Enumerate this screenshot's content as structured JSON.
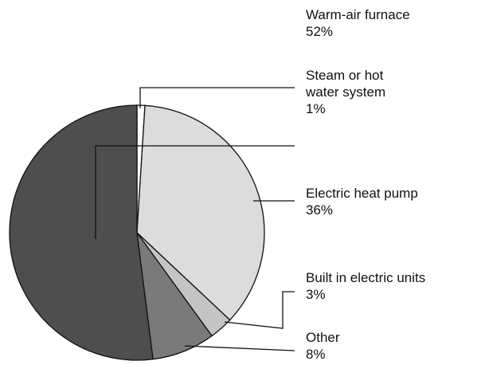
{
  "chart_data": {
    "type": "pie",
    "categories": [
      "Steam or hot water system",
      "Electric heat pump",
      "Built in electric units",
      "Other",
      "Warm-air furnace"
    ],
    "values": [
      1,
      36,
      3,
      8,
      52
    ],
    "value_labels": [
      "1%",
      "36%",
      "3%",
      "8%",
      "52%"
    ],
    "colors": [
      "#ffffff",
      "#dcdcdc",
      "#c4c4c4",
      "#7a7a7a",
      "#4e4e4e"
    ]
  }
}
